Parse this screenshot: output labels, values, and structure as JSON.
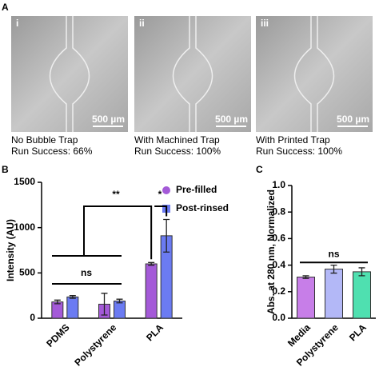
{
  "panel_labels": [
    "A",
    "B",
    "C"
  ],
  "panel_a": {
    "images": [
      {
        "label": "i",
        "scale": "500 µm",
        "caption": "No Bubble Trap",
        "result": "Run Success: 66%"
      },
      {
        "label": "ii",
        "scale": "500 µm",
        "caption": "With Machined Trap",
        "result": "Run Success: 100%"
      },
      {
        "label": "iii",
        "scale": "500 µm",
        "caption": "With Printed Trap",
        "result": "Run Success: 100%"
      }
    ]
  },
  "chart_data": [
    {
      "type": "bar",
      "ylabel": "Intensity (AU)",
      "categories": [
        "PDMS",
        "Polystyrene",
        "PLA"
      ],
      "series": [
        {
          "name": "Pre-filled",
          "color": "#a45ad8",
          "values": [
            180,
            155,
            600
          ],
          "errors": [
            20,
            120,
            15
          ]
        },
        {
          "name": "Post-rinsed",
          "color": "#6b7bf2",
          "values": [
            235,
            190,
            910
          ],
          "errors": [
            15,
            20,
            180
          ]
        }
      ],
      "ylim": [
        0,
        1500
      ],
      "yticks": [
        0,
        500,
        1000,
        1500
      ],
      "annotations": [
        "ns",
        "**",
        "*"
      ]
    },
    {
      "type": "bar",
      "ylabel": "Abs. at 280 nm, Normalized",
      "categories": [
        "Media",
        "Polystyrene",
        "PLA"
      ],
      "values": [
        0.31,
        0.37,
        0.35
      ],
      "errors": [
        0.01,
        0.03,
        0.03
      ],
      "colors": [
        "#c77ee8",
        "#b3b8f7",
        "#4fe0b0"
      ],
      "ylim": [
        0,
        1.0
      ],
      "yticks": [
        {
          "value": 0,
          "label": "0.0"
        },
        0.2,
        0.4,
        0.6,
        0.8,
        {
          "value": 1.0,
          "label": "1.0"
        }
      ],
      "annotations": [
        "ns"
      ]
    }
  ]
}
